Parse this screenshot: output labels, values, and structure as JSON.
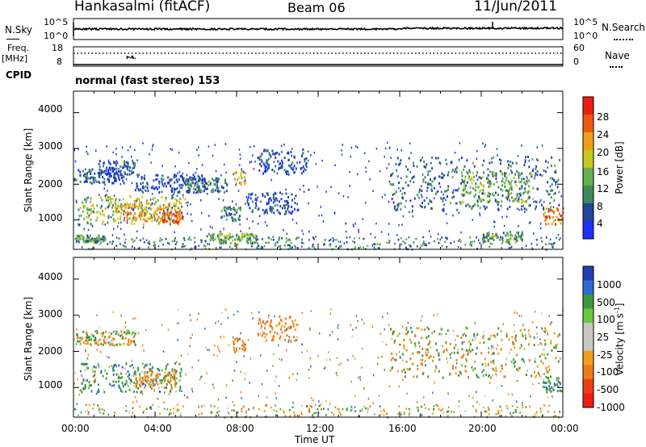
{
  "header": {
    "station": "Hankasalmi (fitACF)",
    "beam": "Beam 06",
    "date": "11/Jun/2011"
  },
  "noise_panel": {
    "left_label": "N.Sky",
    "left_ticks": [
      "10^5",
      "10^0"
    ],
    "right_ticks": [
      "10^5",
      "10^0"
    ],
    "right_label": "N.Search",
    "right_legend_line": "dotted"
  },
  "freq_panel": {
    "left_label_1": "Freq.",
    "left_label_2": "[MHz]",
    "left_ticks": [
      "18",
      "8"
    ],
    "right_ticks": [
      "60",
      "0"
    ],
    "right_label": "Nave",
    "right_legend_line": "dotted"
  },
  "cpid": {
    "label": "CPID",
    "text": "normal (fast stereo) 153"
  },
  "power_panel": {
    "ylabel": "Slant Range [km]",
    "yticks": [
      "1000",
      "2000",
      "3000",
      "4000"
    ],
    "colorbar_label": "Power [dB]",
    "colorbar_ticks": [
      "4",
      "8",
      "12",
      "16",
      "20",
      "24",
      "28"
    ]
  },
  "velocity_panel": {
    "ylabel": "Slant Range [km]",
    "yticks": [
      "1000",
      "2000",
      "3000",
      "4000"
    ],
    "colorbar_label": "Velocity [m s",
    "colorbar_label_sup": "-1",
    "colorbar_label_end": "]",
    "colorbar_ticks": [
      "1000",
      "500",
      "100",
      "25",
      "-25",
      "-100",
      "-500",
      "-1000"
    ]
  },
  "xaxis": {
    "label": "Time UT",
    "ticks": [
      "00:00",
      "04:00",
      "08:00",
      "12:00",
      "16:00",
      "20:00",
      "00:00"
    ]
  },
  "colors": {
    "power_scale": [
      "#1f2fff",
      "#23459a",
      "#3e8a5a",
      "#62b04e",
      "#c7c91d",
      "#f0a018",
      "#ee5b10",
      "#ee1c12"
    ],
    "velocity_scale": [
      "#243fb4",
      "#2d6ad0",
      "#3e9640",
      "#6ac83e",
      "#c8c8c0",
      "#c8c8c0",
      "#f0a018",
      "#ee7b16",
      "#ec3e14",
      "#ee1c12"
    ]
  },
  "chart_data": {
    "type": "heatmap",
    "x_range_hours": [
      0,
      24
    ],
    "y_range_km": [
      180,
      4600
    ],
    "power_scatter_bands": [
      {
        "t": [
          0.0,
          2.5
        ],
        "r": [
          2050,
          2450
        ],
        "db": 6
      },
      {
        "t": [
          1.2,
          3.0
        ],
        "r": [
          2300,
          2700
        ],
        "db": 7
      },
      {
        "t": [
          0.2,
          5.5
        ],
        "r": [
          900,
          1700
        ],
        "db": 16
      },
      {
        "t": [
          2.0,
          5.2
        ],
        "r": [
          1000,
          1500
        ],
        "db": 22
      },
      {
        "t": [
          4.3,
          5.3
        ],
        "r": [
          950,
          1250
        ],
        "db": 27
      },
      {
        "t": [
          3.0,
          6.5
        ],
        "r": [
          1800,
          2300
        ],
        "db": 6
      },
      {
        "t": [
          5.5,
          7.5
        ],
        "r": [
          1800,
          2200
        ],
        "db": 8
      },
      {
        "t": [
          6.5,
          9.0
        ],
        "r": [
          350,
          650
        ],
        "db": 14
      },
      {
        "t": [
          7.2,
          8.2
        ],
        "r": [
          1000,
          1400
        ],
        "db": 10
      },
      {
        "t": [
          7.8,
          8.4
        ],
        "r": [
          2000,
          2400
        ],
        "db": 18
      },
      {
        "t": [
          8.5,
          11.0
        ],
        "r": [
          1200,
          1800
        ],
        "db": 6
      },
      {
        "t": [
          9.0,
          11.5
        ],
        "r": [
          2300,
          3000
        ],
        "db": 5
      },
      {
        "t": [
          0.0,
          1.5
        ],
        "r": [
          400,
          600
        ],
        "db": 12
      },
      {
        "t": [
          15.5,
          23.8
        ],
        "r": [
          1300,
          2800
        ],
        "db": 8
      },
      {
        "t": [
          19.0,
          22.5
        ],
        "r": [
          1500,
          2400
        ],
        "db": 14
      },
      {
        "t": [
          23.0,
          24.0
        ],
        "r": [
          900,
          1400
        ],
        "db": 24
      },
      {
        "t": [
          20.0,
          22.0
        ],
        "r": [
          400,
          700
        ],
        "db": 12
      }
    ],
    "velocity_scatter_bands": [
      {
        "t": [
          0.0,
          3.0
        ],
        "r": [
          2200,
          2600
        ],
        "v": 0
      },
      {
        "t": [
          0.3,
          5.3
        ],
        "r": [
          900,
          1700
        ],
        "v": 200
      },
      {
        "t": [
          3.0,
          5.0
        ],
        "r": [
          1000,
          1500
        ],
        "v": -200
      },
      {
        "t": [
          7.8,
          8.4
        ],
        "r": [
          2000,
          2400
        ],
        "v": -300
      },
      {
        "t": [
          9.0,
          11.0
        ],
        "r": [
          2300,
          3000
        ],
        "v": -200
      },
      {
        "t": [
          15.5,
          23.8
        ],
        "r": [
          1300,
          2700
        ],
        "v": 0
      },
      {
        "t": [
          23.0,
          24.0
        ],
        "r": [
          900,
          1300
        ],
        "v": 200
      }
    ]
  }
}
